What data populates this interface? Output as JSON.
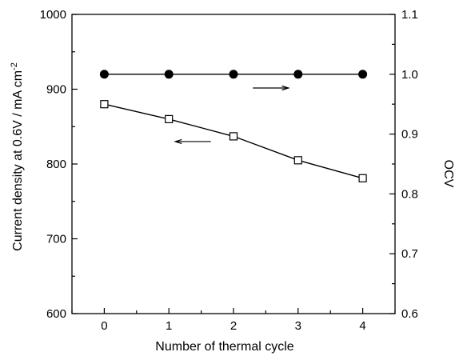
{
  "chart_data": {
    "type": "line",
    "x": [
      0,
      1,
      2,
      3,
      4
    ],
    "xlabel": "Number of thermal cycle",
    "xlim": [
      -0.5,
      4.5
    ],
    "xticks": [
      "0",
      "1",
      "2",
      "3",
      "4"
    ],
    "y_left": {
      "label_main": "Current density at 0.6V / mA cm",
      "label_sup": "-2",
      "lim": [
        600,
        1000
      ],
      "ticks": [
        "600",
        "700",
        "800",
        "900",
        "1000"
      ]
    },
    "y_right": {
      "label": "OCV",
      "lim": [
        0.6,
        1.1
      ],
      "ticks": [
        "0.6",
        "0.7",
        "0.8",
        "0.9",
        "1.0",
        "1.1"
      ]
    },
    "series": [
      {
        "axis": "left",
        "marker": "open-square",
        "values": [
          880,
          860,
          837,
          805,
          781
        ]
      },
      {
        "axis": "right",
        "marker": "filled-circle",
        "values": [
          1.0,
          1.0,
          1.0,
          1.0,
          1.0
        ]
      }
    ],
    "annotations": [
      {
        "type": "arrow",
        "direction": "left",
        "points_to": "left-axis",
        "x_from": 1.65,
        "x_to": 1.1,
        "y": 830
      },
      {
        "type": "arrow",
        "direction": "right",
        "points_to": "right-axis",
        "x_from": 2.3,
        "x_to": 2.85,
        "y": 0.977
      }
    ],
    "grid": false,
    "colors": {
      "line": "#000000",
      "background": "#ffffff"
    }
  }
}
